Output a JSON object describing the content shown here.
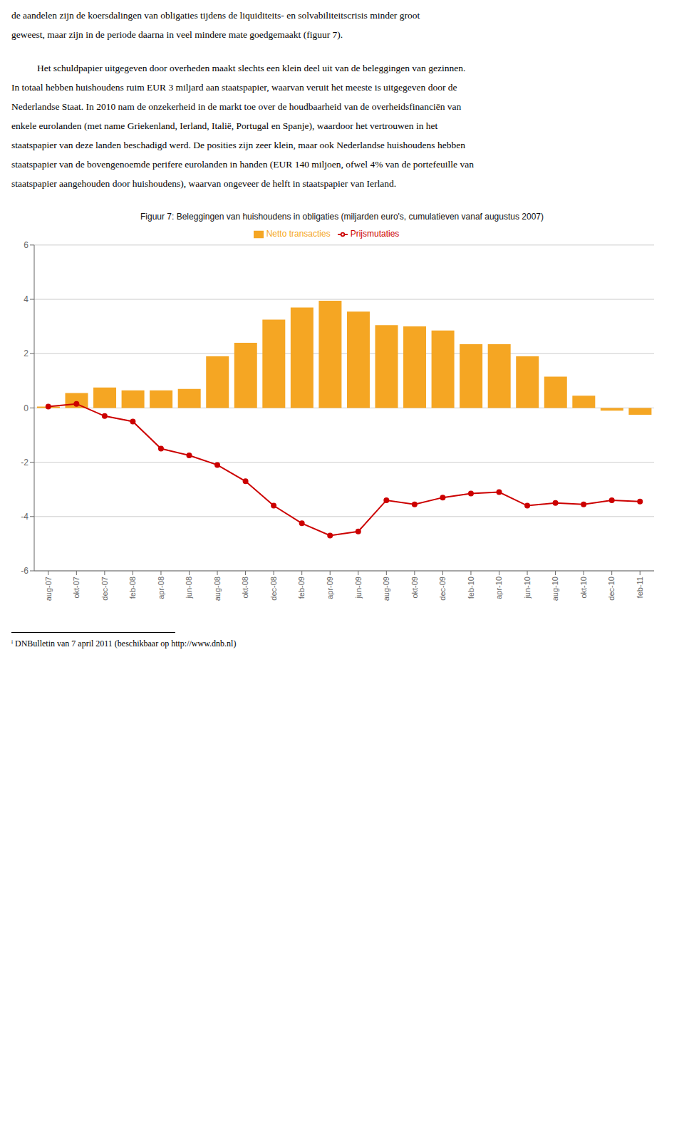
{
  "chart_data": {
    "type": "bar",
    "title": "Figuur 7: Beleggingen van huishoudens in obligaties (miljarden euro's, cumulatieven vanaf augustus 2007)",
    "categories": [
      "aug-07",
      "okt-07",
      "dec-07",
      "feb-08",
      "apr-08",
      "jun-08",
      "aug-08",
      "okt-08",
      "dec-08",
      "feb-09",
      "apr-09",
      "jun-09",
      "aug-09",
      "okt-09",
      "dec-09",
      "feb-10",
      "apr-10",
      "jun-10",
      "aug-10",
      "okt-10",
      "dec-10",
      "feb-11"
    ],
    "series": [
      {
        "name": "Netto transacties",
        "type": "bar",
        "color": "#F5A623",
        "values": [
          0.05,
          0.55,
          0.75,
          0.65,
          0.65,
          0.7,
          1.9,
          2.4,
          3.25,
          3.7,
          3.95,
          3.55,
          3.05,
          3.0,
          2.85,
          2.35,
          2.35,
          1.9,
          1.15,
          0.45,
          -0.1,
          -0.25
        ]
      },
      {
        "name": "Prijsmutaties",
        "type": "line",
        "color": "#CC0000",
        "marker": "circle",
        "values": [
          0.05,
          0.15,
          -0.3,
          -0.5,
          -1.5,
          -1.75,
          -2.1,
          -2.7,
          -3.6,
          -4.25,
          -4.7,
          -4.55,
          -3.4,
          -3.55,
          -3.3,
          -3.15,
          -3.1,
          -3.6,
          -3.5,
          -3.55,
          -3.4,
          -3.45
        ]
      }
    ],
    "ylim": [
      -6,
      6
    ],
    "yticks": [
      -6,
      -4,
      -2,
      0,
      2,
      4,
      6
    ],
    "grid": true,
    "legend": "top",
    "annotations": [
      "de aandelen zijn de koersdalingen van obligaties tijdens de liquiditeits- en solvabiliteitscrisis minder groot",
      "geweest, maar zijn in de periode daarna in veel mindere mate goedgemaakt (figuur 7).",
      "Het schuldpapier uitgegeven door overheden maakt slechts een klein deel uit van de beleggingen van gezinnen.",
      "In totaal hebben huishoudens ruim EUR 3 miljard aan staatspapier, waarvan veruit het meeste is uitgegeven door de",
      "Nederlandse Staat. In 2010 nam de onzekerheid in de markt toe over de houdbaarheid van de overheidsfinanciën van",
      "enkele eurolanden (met name Griekenland, Ierland, Italië, Portugal en Spanje), waardoor het vertrouwen in het",
      "staatspapier van deze landen beschadigd werd. De posities zijn zeer klein, maar ook Nederlandse huishoudens hebben",
      "staatspapier van de bovengenoemde perifere eurolanden in handen (EUR 140 miljoen, ofwel 4% van de portefeuille van",
      "staatspapier aangehouden door huishoudens), waarvan ongeveer de helft in staatspapier van Ierland.",
      "ⁱ DNBulletin van 7 april 2011 (beschikbaar op http://www.dnb.nl)"
    ]
  }
}
